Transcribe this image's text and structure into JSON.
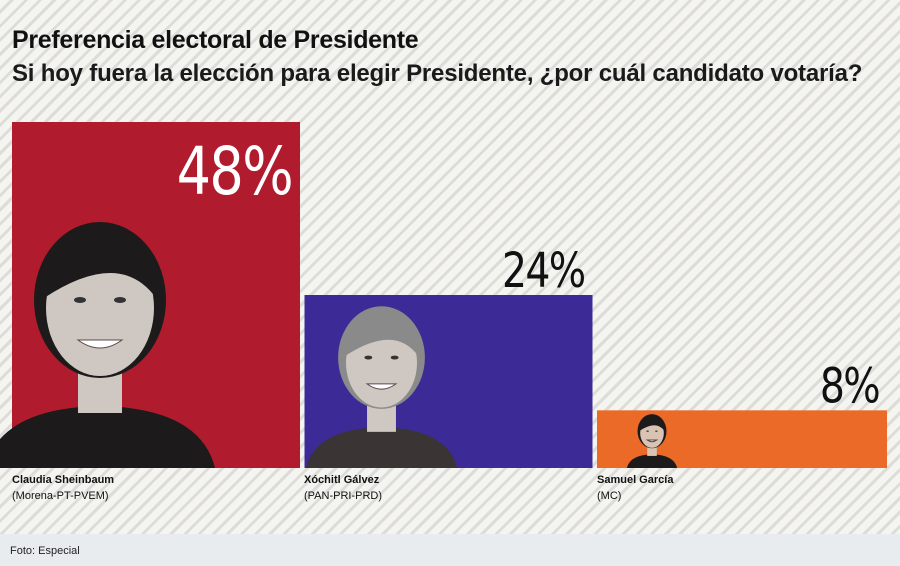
{
  "chart_data": {
    "type": "bar",
    "title": "Preferencia electoral de Presidente",
    "subtitle": "Si hoy fuera la elección para elegir Presidente, ¿por cuál candidato votaría?",
    "categories": [
      "Claudia Sheinbaum",
      "Xóchitl Gálvez",
      "Samuel García"
    ],
    "parties": [
      "(Morena-PT-PVEM)",
      "(PAN-PRI-PRD)",
      "(MC)"
    ],
    "values": [
      48,
      24,
      8
    ],
    "value_labels": [
      "48%",
      "24%",
      "8%"
    ],
    "unit": "%",
    "colors": [
      "#b01c2e",
      "#3c2a96",
      "#ec6a28"
    ],
    "ylim": [
      0,
      50
    ],
    "grid": false,
    "legend": "none"
  },
  "footer": {
    "credit": "Foto: Especial"
  },
  "icons": [
    "claudia-sheinbaum-photo",
    "xochitl-galvez-photo",
    "samuel-garcia-photo"
  ]
}
